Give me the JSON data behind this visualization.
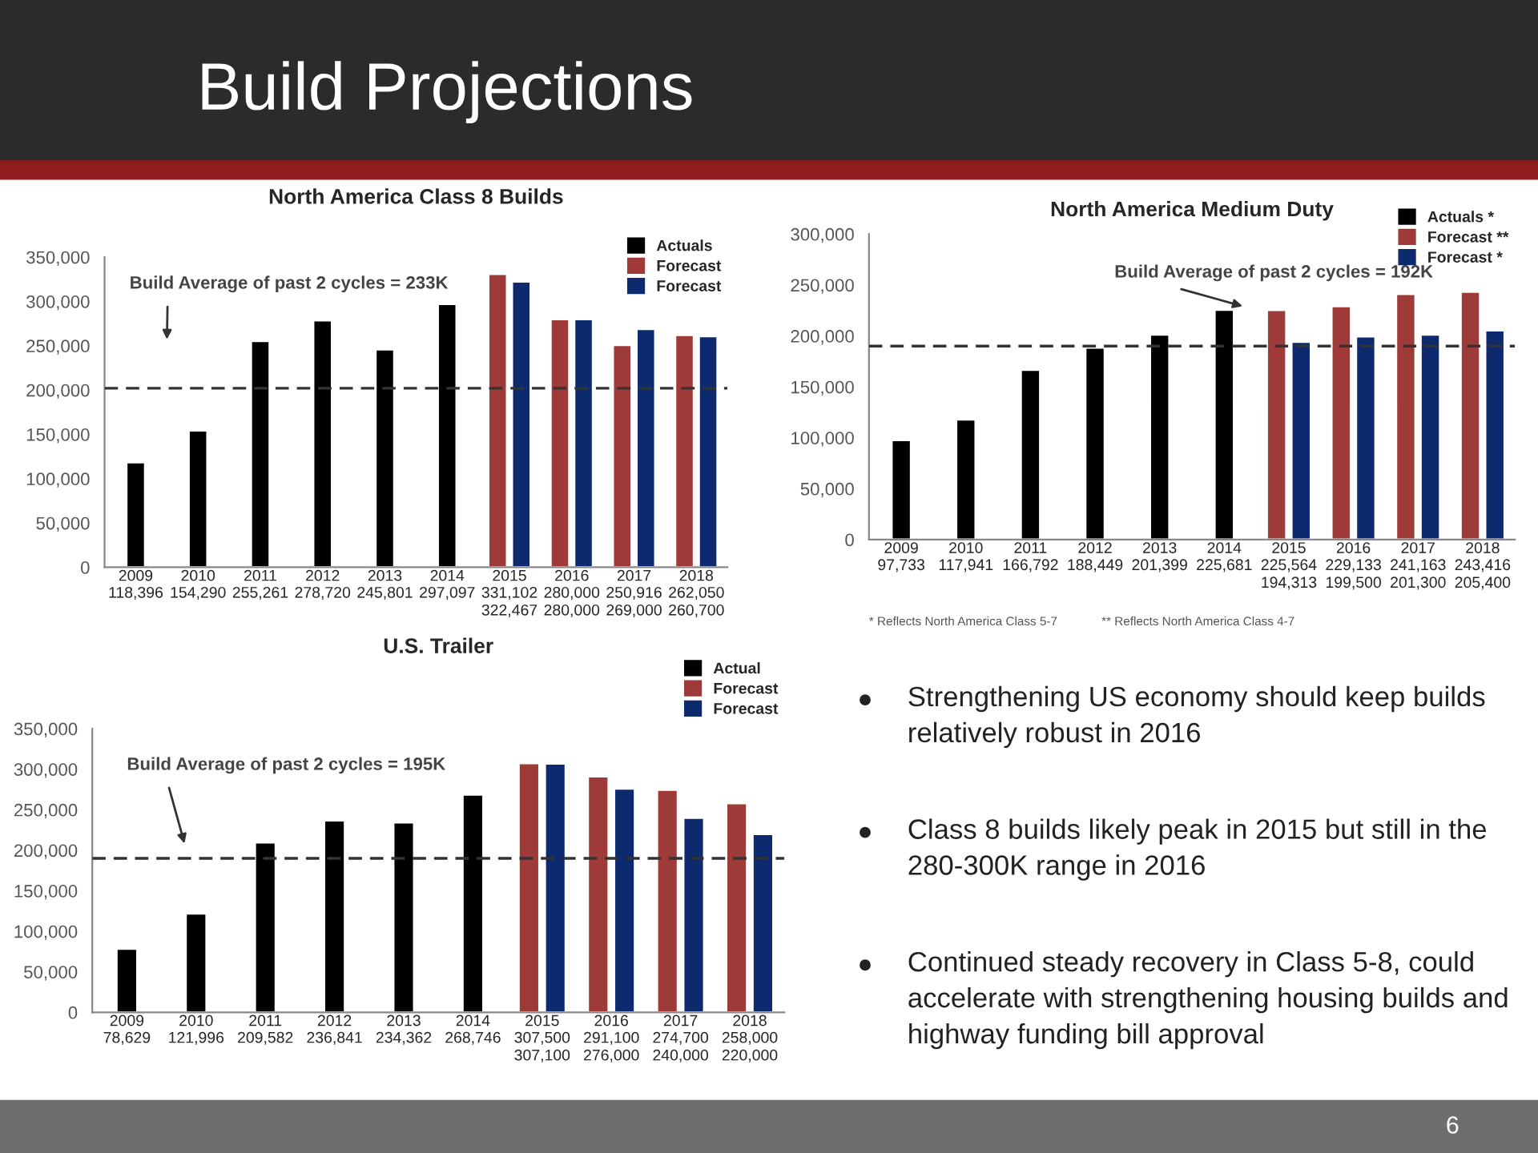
{
  "chart_data": [
    {
      "type": "other",
      "title": "Build Projections",
      "annotations": [
        "Strengthening US economy should keep builds relatively robust in 2016",
        "Class 8 builds likely peak in 2015 but still in the 280-300K range in 2016",
        "Continued steady recovery in Class 5-8, could accelerate with strengthening housing builds and highway funding bill approval",
        "6"
      ]
    },
    {
      "type": "bar",
      "title": "North America Class 8 Builds",
      "categories": [
        "2009",
        "2010",
        "2011",
        "2012",
        "2013",
        "2014",
        "2015",
        "2016",
        "2017",
        "2018"
      ],
      "series": [
        {
          "name": "Actuals",
          "color": "#000000",
          "values": [
            118396,
            154290,
            255261,
            278720,
            245801,
            297097,
            null,
            null,
            null,
            null
          ],
          "value_labels": [
            "118,396",
            "154,290",
            "255,261",
            "278,720",
            "245,801",
            "297,097",
            null,
            null,
            null,
            null
          ]
        },
        {
          "name": "Forecast",
          "color": "#9e3a38",
          "values": [
            null,
            null,
            null,
            null,
            null,
            null,
            331102,
            280000,
            250916,
            262050
          ],
          "value_labels": [
            null,
            null,
            null,
            null,
            null,
            null,
            "331,102",
            "280,000",
            "250,916",
            "262,050"
          ]
        },
        {
          "name": "Forecast",
          "color": "#0e2a6e",
          "values": [
            null,
            null,
            null,
            null,
            null,
            null,
            322467,
            280000,
            269000,
            260700
          ],
          "value_labels": [
            null,
            null,
            null,
            null,
            null,
            null,
            "322,467",
            "280,000",
            "269,000",
            "260,700"
          ]
        }
      ],
      "ylim": [
        0,
        350000
      ],
      "yticks": [
        {
          "value": 0,
          "label": "0"
        },
        {
          "value": 50000,
          "label": "50,000"
        },
        {
          "value": 100000,
          "label": "100,000"
        },
        {
          "value": 150000,
          "label": "150,000"
        },
        {
          "value": 200000,
          "label": "200,000"
        },
        {
          "value": 250000,
          "label": "250,000"
        },
        {
          "value": 300000,
          "label": "300,000"
        },
        {
          "value": 350000,
          "label": "350,000"
        }
      ],
      "ref_lines": [
        {
          "axis": "y",
          "value": 202000,
          "line_style": "dashed",
          "color": "#333333"
        }
      ],
      "annotations": [
        "Build Average of past 2 cycles = 233K"
      ],
      "legend": "top right"
    },
    {
      "type": "bar",
      "title": "North America Medium Duty",
      "categories": [
        "2009",
        "2010",
        "2011",
        "2012",
        "2013",
        "2014",
        "2015",
        "2016",
        "2017",
        "2018"
      ],
      "series": [
        {
          "name": "Actuals *",
          "color": "#000000",
          "values": [
            97733,
            117941,
            166792,
            188449,
            201399,
            225681,
            null,
            null,
            null,
            null
          ],
          "value_labels": [
            "97,733",
            "117,941",
            "166,792",
            "188,449",
            "201,399",
            "225,681",
            null,
            null,
            null,
            null
          ]
        },
        {
          "name": "Forecast **",
          "color": "#9e3a38",
          "values": [
            null,
            null,
            null,
            null,
            null,
            null,
            225564,
            229133,
            241163,
            243416
          ],
          "value_labels": [
            null,
            null,
            null,
            null,
            null,
            null,
            "225,564",
            "229,133",
            "241,163",
            "243,416"
          ]
        },
        {
          "name": "Forecast *",
          "color": "#0e2a6e",
          "values": [
            null,
            null,
            null,
            null,
            null,
            null,
            194313,
            199500,
            201300,
            205400
          ],
          "value_labels": [
            null,
            null,
            null,
            null,
            null,
            null,
            "194,313",
            "199,500",
            "201,300",
            "205,400"
          ]
        }
      ],
      "ylim": [
        0,
        300000
      ],
      "yticks": [
        {
          "value": 0,
          "label": "0"
        },
        {
          "value": 50000,
          "label": "50,000"
        },
        {
          "value": 100000,
          "label": "100,000"
        },
        {
          "value": 150000,
          "label": "150,000"
        },
        {
          "value": 200000,
          "label": "200,000"
        },
        {
          "value": 250000,
          "label": "250,000"
        },
        {
          "value": 300000,
          "label": "300,000"
        }
      ],
      "ref_lines": [
        {
          "axis": "y",
          "value": 190000,
          "line_style": "dashed",
          "color": "#333333"
        }
      ],
      "annotations": [
        "Build Average of past 2 cycles = 192K",
        "* Reflects North America Class 5-7",
        "** Reflects North America Class 4-7"
      ],
      "legend": "top right"
    },
    {
      "type": "bar",
      "title": "U.S. Trailer",
      "categories": [
        "2009",
        "2010",
        "2011",
        "2012",
        "2013",
        "2014",
        "2015",
        "2016",
        "2017",
        "2018"
      ],
      "series": [
        {
          "name": "Actual",
          "color": "#000000",
          "values": [
            78629,
            121996,
            209582,
            236841,
            234362,
            268746,
            null,
            null,
            null,
            null
          ],
          "value_labels": [
            "78,629",
            "121,996",
            "209,582",
            "236,841",
            "234,362",
            "268,746",
            null,
            null,
            null,
            null
          ]
        },
        {
          "name": "Forecast",
          "color": "#9e3a38",
          "values": [
            null,
            null,
            null,
            null,
            null,
            null,
            307500,
            291100,
            274700,
            258000
          ],
          "value_labels": [
            null,
            null,
            null,
            null,
            null,
            null,
            "307,500",
            "291,100",
            "274,700",
            "258,000"
          ]
        },
        {
          "name": "Forecast",
          "color": "#0e2a6e",
          "values": [
            null,
            null,
            null,
            null,
            null,
            null,
            307100,
            276000,
            240000,
            220000
          ],
          "value_labels": [
            null,
            null,
            null,
            null,
            null,
            null,
            "307,100",
            "276,000",
            "240,000",
            "220,000"
          ]
        }
      ],
      "ylim": [
        0,
        350000
      ],
      "yticks": [
        {
          "value": 0,
          "label": "0"
        },
        {
          "value": 50000,
          "label": "50,000"
        },
        {
          "value": 100000,
          "label": "100,000"
        },
        {
          "value": 150000,
          "label": "150,000"
        },
        {
          "value": 200000,
          "label": "200,000"
        },
        {
          "value": 250000,
          "label": "250,000"
        },
        {
          "value": 300000,
          "label": "300,000"
        },
        {
          "value": 350000,
          "label": "350,000"
        }
      ],
      "ref_lines": [
        {
          "axis": "y",
          "value": 190000,
          "line_style": "dashed",
          "color": "#333333"
        }
      ],
      "annotations": [
        "Build Average of past 2 cycles = 195K"
      ],
      "legend": "top right"
    }
  ]
}
